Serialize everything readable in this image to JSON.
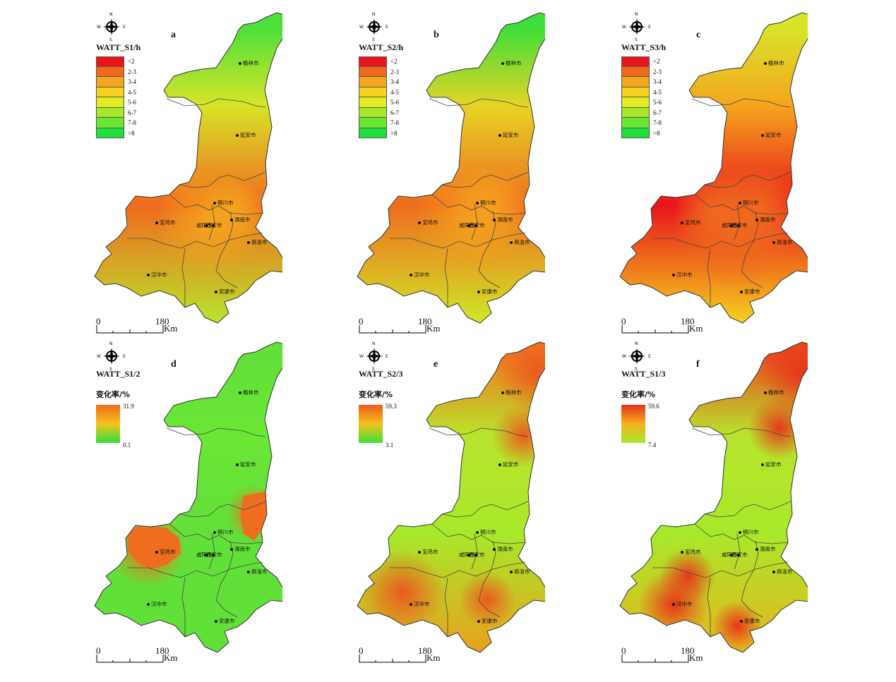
{
  "compass": {
    "n": "N",
    "s": "S",
    "e": "E",
    "w": "W"
  },
  "scale_bar": {
    "zero": "0",
    "dist": "180",
    "unit": "Km"
  },
  "cities": [
    "榆林市",
    "延安市",
    "铜川市",
    "宝鸡市",
    "咸阳市",
    "西安市",
    "渭南市",
    "商洛市",
    "汉中市",
    "安康市"
  ],
  "legend_classes": [
    {
      "label": "<2",
      "color": "#e8141a"
    },
    {
      "label": "2-3",
      "color": "#f06a1e"
    },
    {
      "label": "3-4",
      "color": "#f5a51e"
    },
    {
      "label": "4-5",
      "color": "#f5d21e"
    },
    {
      "label": "5-6",
      "color": "#e3ec20"
    },
    {
      "label": "6-7",
      "color": "#a8e82a"
    },
    {
      "label": "7-8",
      "color": "#6ae634"
    },
    {
      "label": ">8",
      "color": "#22e03a"
    }
  ],
  "panels": [
    {
      "id": "a",
      "title": "WATT_S1/h",
      "type": "classes",
      "theme": "a"
    },
    {
      "id": "b",
      "title": "WATT_S2/h",
      "type": "classes",
      "theme": "b"
    },
    {
      "id": "c",
      "title": "WATT_S3/h",
      "type": "classes",
      "theme": "c"
    },
    {
      "id": "d",
      "title": "WATT_S1/2",
      "type": "rate",
      "rate_label": "变化率/%",
      "max": "31.9",
      "min": "0.1",
      "theme": "d"
    },
    {
      "id": "e",
      "title": "WATT_S2/3",
      "type": "rate",
      "rate_label": "变化率/%",
      "max": "59.3",
      "min": "3.1",
      "theme": "e"
    },
    {
      "id": "f",
      "title": "WATT_S1/3",
      "type": "rate",
      "rate_label": "变化率/%",
      "max": "59.6",
      "min": "7.4",
      "theme": "f"
    }
  ]
}
